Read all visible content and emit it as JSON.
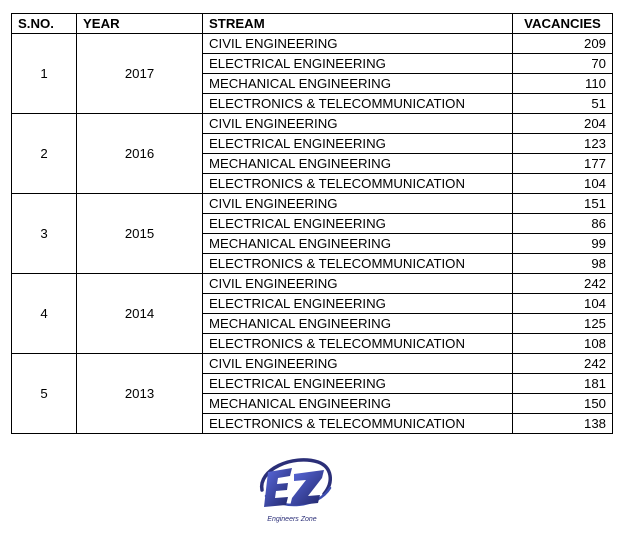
{
  "table": {
    "headers": {
      "sno": "S.NO.",
      "year": "YEAR",
      "stream": "STREAM",
      "vacancies": "VACANCIES"
    },
    "groups": [
      {
        "sno": "1",
        "year": "2017",
        "rows": [
          {
            "stream": "CIVIL ENGINEERING",
            "vacancies": "209"
          },
          {
            "stream": "ELECTRICAL ENGINEERING",
            "vacancies": "70"
          },
          {
            "stream": "MECHANICAL ENGINEERING",
            "vacancies": "110"
          },
          {
            "stream": "ELECTRONICS & TELECOMMUNICATION",
            "vacancies": "51"
          }
        ]
      },
      {
        "sno": "2",
        "year": "2016",
        "rows": [
          {
            "stream": "CIVIL ENGINEERING",
            "vacancies": "204"
          },
          {
            "stream": "ELECTRICAL ENGINEERING",
            "vacancies": "123"
          },
          {
            "stream": "MECHANICAL ENGINEERING",
            "vacancies": "177"
          },
          {
            "stream": "ELECTRONICS & TELECOMMUNICATION",
            "vacancies": "104"
          }
        ]
      },
      {
        "sno": "3",
        "year": "2015",
        "rows": [
          {
            "stream": "CIVIL ENGINEERING",
            "vacancies": "151"
          },
          {
            "stream": "ELECTRICAL ENGINEERING",
            "vacancies": "86"
          },
          {
            "stream": "MECHANICAL ENGINEERING",
            "vacancies": "99"
          },
          {
            "stream": "ELECTRONICS & TELECOMMUNICATION",
            "vacancies": "98"
          }
        ]
      },
      {
        "sno": "4",
        "year": "2014",
        "rows": [
          {
            "stream": "CIVIL ENGINEERING",
            "vacancies": "242"
          },
          {
            "stream": "ELECTRICAL ENGINEERING",
            "vacancies": "104"
          },
          {
            "stream": "MECHANICAL ENGINEERING",
            "vacancies": "125"
          },
          {
            "stream": "ELECTRONICS & TELECOMMUNICATION",
            "vacancies": "108"
          }
        ]
      },
      {
        "sno": "5",
        "year": "2013",
        "rows": [
          {
            "stream": "CIVIL ENGINEERING",
            "vacancies": "242"
          },
          {
            "stream": "ELECTRICAL ENGINEERING",
            "vacancies": "181"
          },
          {
            "stream": "MECHANICAL ENGINEERING",
            "vacancies": "150"
          },
          {
            "stream": "ELECTRONICS & TELECOMMUNICATION",
            "vacancies": "138"
          }
        ]
      }
    ]
  },
  "logo": {
    "icon": "engineers-zone-logo-icon",
    "caption": "Engineers Zone",
    "colors": {
      "primary": "#2b2f78",
      "accent": "#3c4db0"
    }
  }
}
